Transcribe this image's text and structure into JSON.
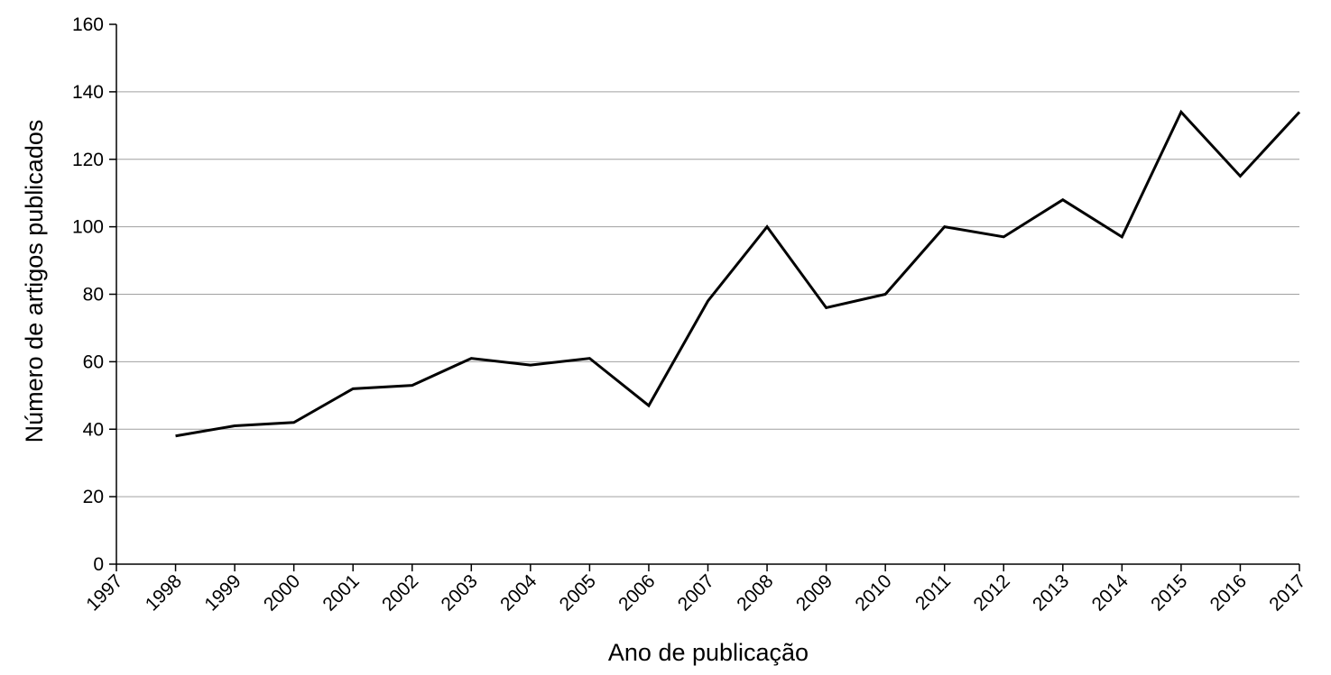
{
  "chart_data": {
    "type": "line",
    "x_label": "Ano de publicação",
    "y_label": "Número de artigos publicados",
    "x": [
      1998,
      1999,
      2000,
      2001,
      2002,
      2003,
      2004,
      2005,
      2006,
      2007,
      2008,
      2009,
      2010,
      2011,
      2012,
      2013,
      2014,
      2015,
      2016,
      2017
    ],
    "values": [
      38,
      41,
      42,
      52,
      53,
      61,
      59,
      61,
      47,
      78,
      100,
      76,
      80,
      100,
      97,
      108,
      97,
      134,
      115,
      134
    ],
    "color": "#000000",
    "xlim": [
      1997,
      2017
    ],
    "xticks": [
      1997,
      1998,
      1999,
      2000,
      2001,
      2002,
      2003,
      2004,
      2005,
      2006,
      2007,
      2008,
      2009,
      2010,
      2011,
      2012,
      2013,
      2014,
      2015,
      2016,
      2017
    ],
    "ylim": [
      0,
      160
    ],
    "yticks": [
      0,
      20,
      40,
      60,
      80,
      100,
      120,
      140,
      160
    ],
    "grid": true
  }
}
